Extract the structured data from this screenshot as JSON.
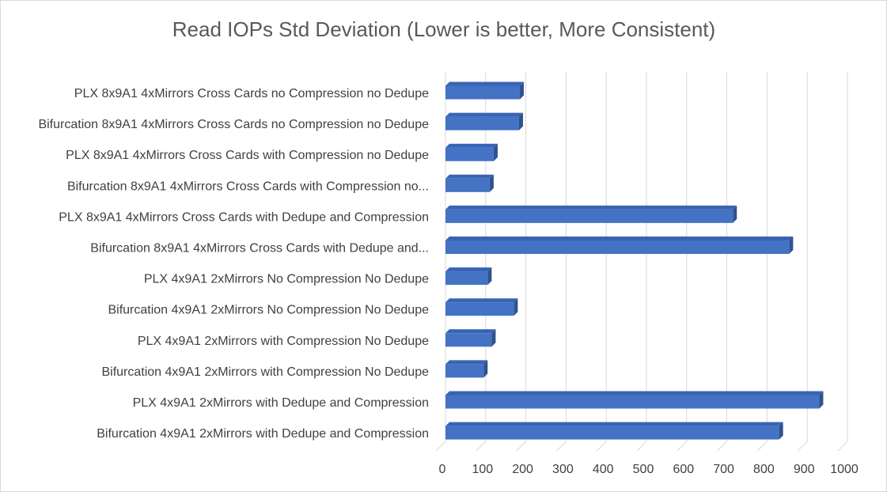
{
  "chart_data": {
    "type": "bar",
    "orientation": "horizontal",
    "title": "Read IOPs Std Deviation (Lower is better, More Consistent)",
    "categories": [
      "PLX 8x9A1 4xMirrors Cross Cards no Compression no Dedupe",
      "Bifurcation 8x9A1 4xMirrors Cross Cards no Compression no Dedupe",
      "PLX 8x9A1 4xMirrors Cross Cards with Compression no Dedupe",
      "Bifurcation 8x9A1 4xMirrors Cross Cards with Compression no...",
      "PLX 8x9A1 4xMirrors Cross Cards with Dedupe and Compression",
      "Bifurcation 8x9A1 4xMirrors Cross Cards with Dedupe and...",
      "PLX 4x9A1 2xMirrors No Compression No Dedupe",
      "Bifurcation 4x9A1 2xMirrors No Compression No Dedupe",
      "PLX 4x9A1 2xMirrors with Compression No Dedupe",
      "Bifurcation 4x9A1 2xMirrors with Compression No Dedupe",
      "PLX 4x9A1 2xMirrors with Dedupe and Compression",
      "Bifurcation 4x9A1 2xMirrors with Dedupe and Compression"
    ],
    "values": [
      185,
      183,
      120,
      110,
      715,
      855,
      105,
      170,
      115,
      95,
      930,
      830
    ],
    "xlim": [
      0,
      1000
    ],
    "xticks": [
      "0",
      "100",
      "200",
      "300",
      "400",
      "500",
      "600",
      "700",
      "800",
      "900",
      "1000"
    ],
    "xlabel": "",
    "ylabel": "",
    "grid": true,
    "legend": "none",
    "colors": {
      "bar_front": "#4472c4",
      "bar_top": "#3864b3",
      "bar_side": "#2f528f",
      "grid": "#d9d9d9",
      "title": "#595959",
      "text": "#404040"
    }
  }
}
